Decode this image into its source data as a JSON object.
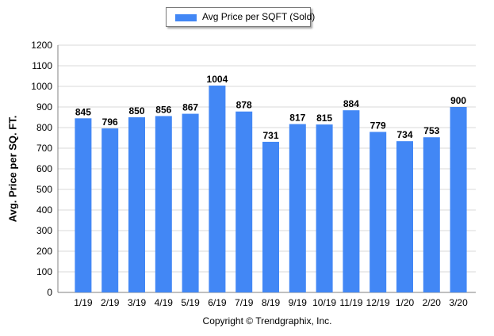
{
  "legend": {
    "label": "Avg Price per SQFT (Sold)",
    "color": "#4287f5"
  },
  "copyright": "Copyright © Trendgraphix, Inc.",
  "chart_data": {
    "type": "bar",
    "title": "",
    "xlabel": "",
    "ylabel": "Avg. Price per SQ. FT.",
    "categories": [
      "1/19",
      "2/19",
      "3/19",
      "4/19",
      "5/19",
      "6/19",
      "7/19",
      "8/19",
      "9/19",
      "10/19",
      "11/19",
      "12/19",
      "1/20",
      "2/20",
      "3/20"
    ],
    "series": [
      {
        "name": "Avg Price per SQFT (Sold)",
        "values": [
          845,
          796,
          850,
          856,
          867,
          1004,
          878,
          731,
          817,
          815,
          884,
          779,
          734,
          753,
          900
        ]
      }
    ],
    "ylim": [
      0,
      1200
    ],
    "yticks": [
      0,
      100,
      200,
      300,
      400,
      500,
      600,
      700,
      800,
      900,
      1000,
      1100,
      1200
    ],
    "grid": true,
    "legend_position": "top-center",
    "bar_color": "#4287f5"
  }
}
